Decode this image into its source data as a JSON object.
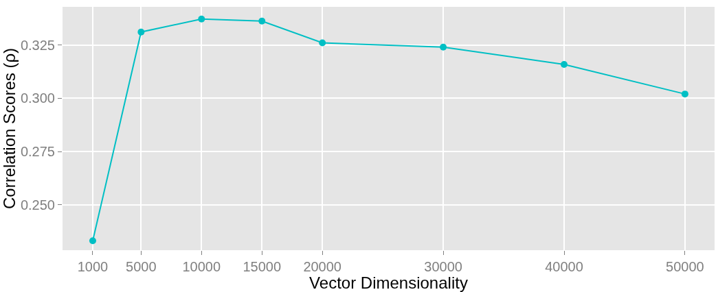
{
  "chart_data": {
    "type": "line",
    "xlabel": "Vector Dimensionality",
    "ylabel": "Correlation Scores (ρ)",
    "x": [
      1000,
      5000,
      10000,
      15000,
      20000,
      30000,
      40000,
      50000
    ],
    "series": [
      {
        "color": "#00bfc4",
        "values": [
          0.2331,
          0.3311,
          0.3372,
          0.3362,
          0.326,
          0.324,
          0.3159,
          0.302
        ]
      }
    ],
    "xlim": [
      -1500,
      52450
    ],
    "ylim": [
      0.2287,
      0.3429
    ],
    "xticks": [
      1000,
      5000,
      10000,
      15000,
      20000,
      30000,
      40000,
      50000
    ],
    "yticks": [
      {
        "value": 0.25,
        "label": "0.250"
      },
      {
        "value": 0.275,
        "label": "0.275"
      },
      {
        "value": 0.3,
        "label": "0.300"
      },
      {
        "value": 0.325,
        "label": "0.325"
      }
    ],
    "grid": true,
    "marker": "circle",
    "line_style": "solid"
  }
}
